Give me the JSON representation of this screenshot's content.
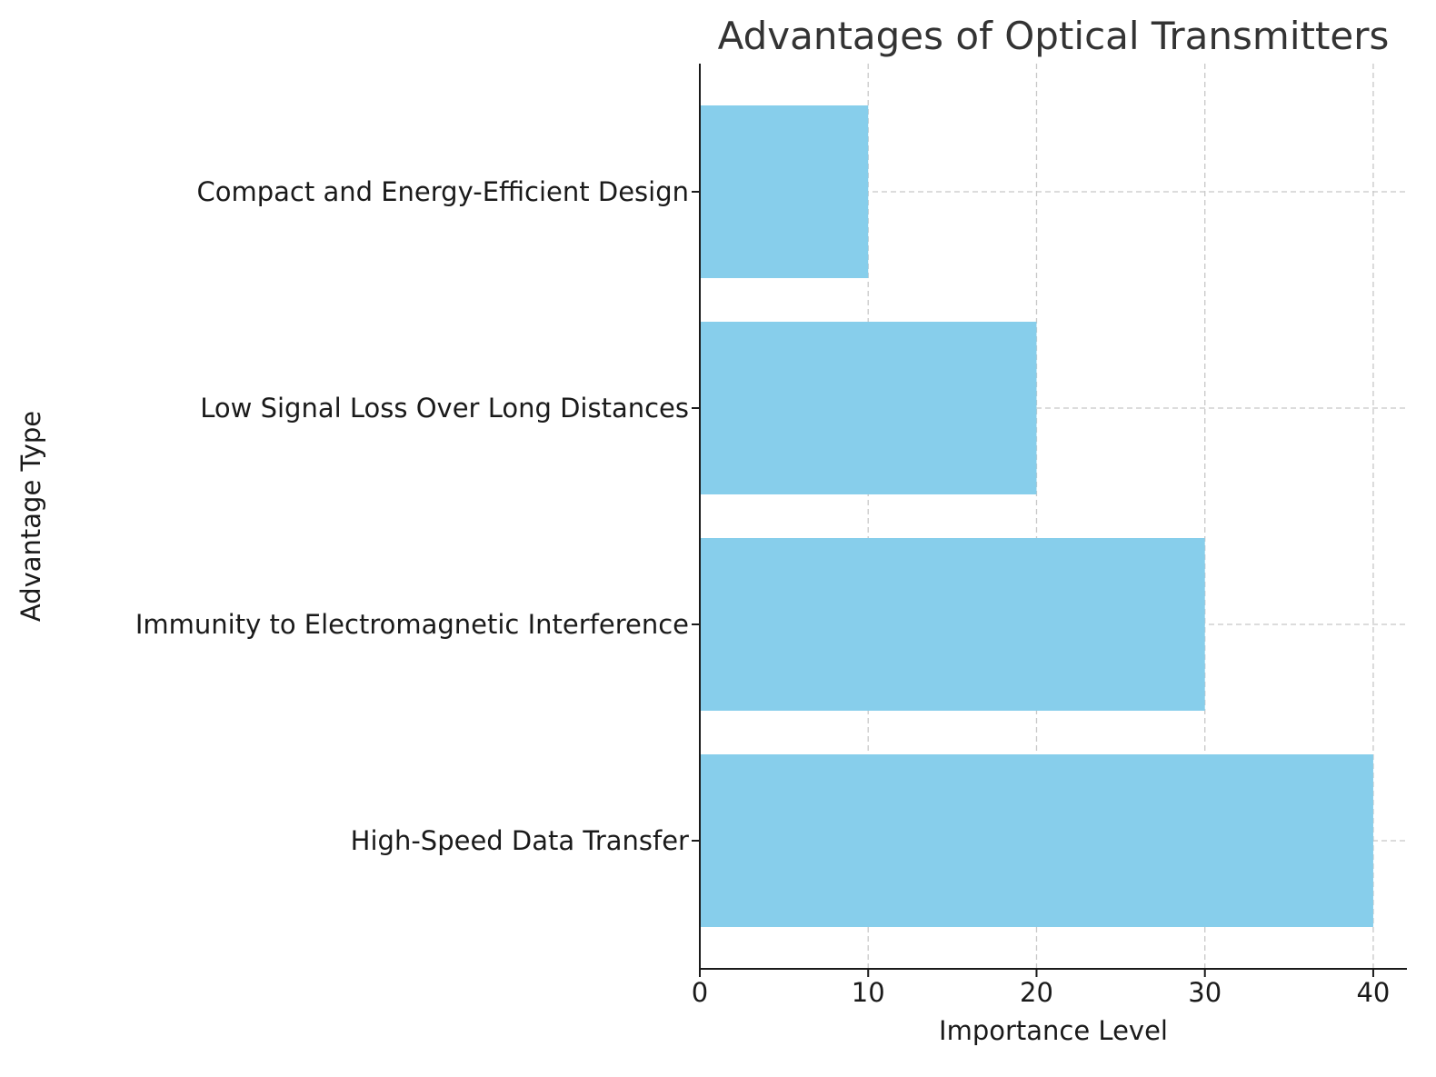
{
  "chart_data": {
    "type": "bar",
    "orientation": "horizontal",
    "title": "Advantages of Optical Transmitters",
    "xlabel": "Importance Level",
    "ylabel": "Advantage Type",
    "categories": [
      "High-Speed Data Transfer",
      "Immunity to Electromagnetic Interference",
      "Low Signal Loss Over Long Distances",
      "Compact and Energy-Efficient Design"
    ],
    "values": [
      40,
      30,
      20,
      10
    ],
    "xlim": [
      0,
      42
    ],
    "xticks": [
      "0",
      "10",
      "20",
      "30",
      "40"
    ],
    "grid": true,
    "bar_color": "#87CEEB"
  }
}
